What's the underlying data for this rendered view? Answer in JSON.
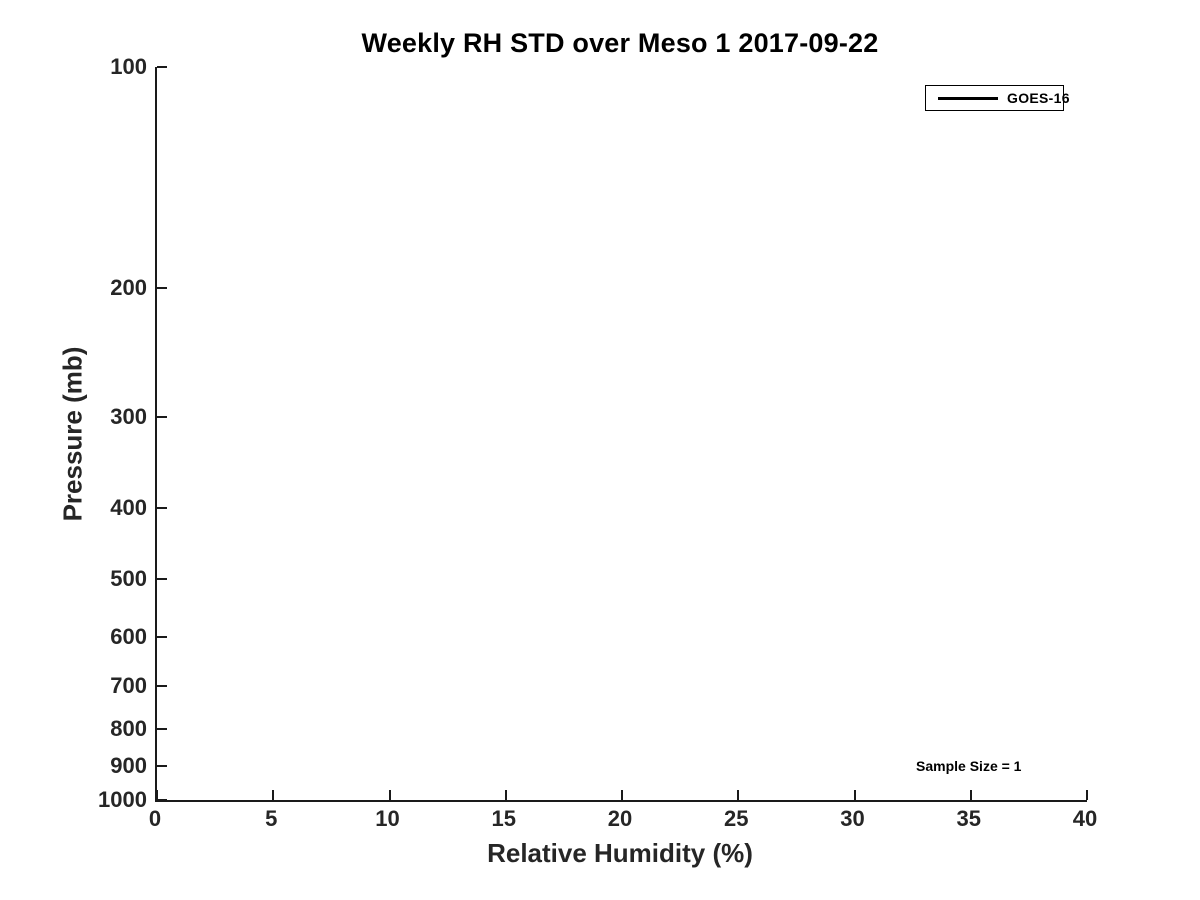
{
  "chart_data": {
    "type": "line",
    "title": "Weekly RH STD over Meso 1 2017-09-22",
    "xlabel": "Relative Humidity (%)",
    "ylabel": "Pressure (mb)",
    "xlim": [
      0,
      40
    ],
    "xticks": [
      0,
      5,
      10,
      15,
      20,
      25,
      30,
      35,
      40
    ],
    "yscale": "log",
    "y_top": 100,
    "y_bottom": 1000,
    "yticks": [
      100,
      200,
      300,
      400,
      500,
      600,
      700,
      800,
      900,
      1000
    ],
    "grid": false,
    "tick_direction": "in",
    "spines": [
      "left",
      "bottom"
    ],
    "legend": {
      "position": "upper-right",
      "entries": [
        "GOES-16"
      ]
    },
    "series": [
      {
        "name": "GOES-16",
        "color": "#000000",
        "line_width": 3,
        "points": []
      }
    ],
    "annotations": [
      {
        "text": "Sample Size = 1",
        "x": 35,
        "y": 900
      }
    ],
    "colors": {
      "background": "#ffffff",
      "title_text": "#000000",
      "axis_text": "#262626",
      "spine": "#1a1a1a"
    }
  }
}
